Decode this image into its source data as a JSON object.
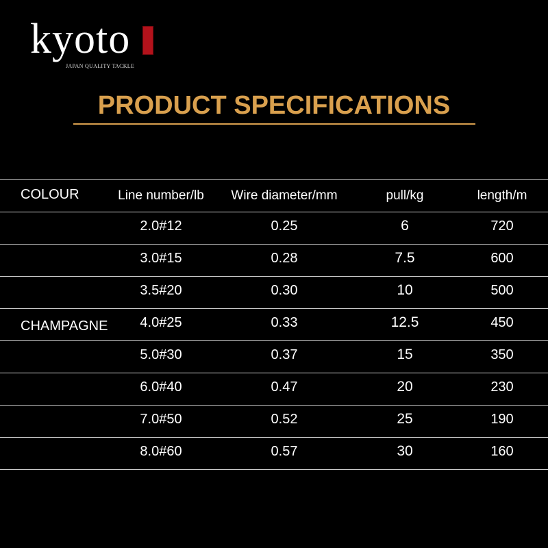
{
  "header": {
    "brand": "kyoto",
    "tagline": "JAPAN QUALITY TACKLE",
    "title": "PRODUCT SPECIFICATIONS"
  },
  "table": {
    "columns": [
      "COLOUR",
      "Line number/lb",
      "Wire diameter/mm",
      "pull/kg",
      "length/m"
    ],
    "colour": "CHAMPAGNE",
    "rows": [
      [
        "2.0#12",
        "0.25",
        "6",
        "720"
      ],
      [
        "3.0#15",
        "0.28",
        "7.5",
        "600"
      ],
      [
        "3.5#20",
        "0.30",
        "10",
        "500"
      ],
      [
        "4.0#25",
        "0.33",
        "12.5",
        "450"
      ],
      [
        "5.0#30",
        "0.37",
        "15",
        "350"
      ],
      [
        "6.0#40",
        "0.47",
        "20",
        "230"
      ],
      [
        "7.0#50",
        "0.52",
        "25",
        "190"
      ],
      [
        "8.0#60",
        "0.57",
        "30",
        "160"
      ]
    ]
  }
}
